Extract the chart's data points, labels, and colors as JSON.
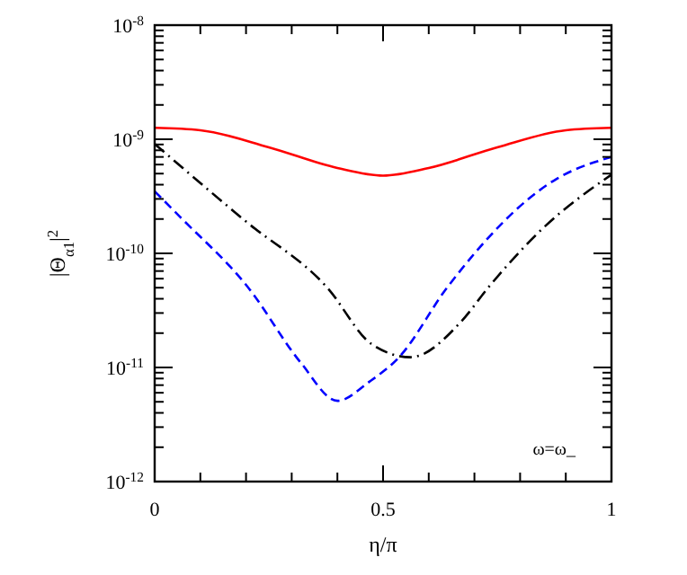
{
  "chart_data": {
    "type": "line",
    "xlabel": "η/π",
    "ylabel": "|Θ$_{α1}$|$^{2}$",
    "log": "y",
    "xlim": [
      0,
      1
    ],
    "ylim": [
      1e-12,
      1e-08
    ],
    "xticks": [
      0,
      {
        "value": 0.1,
        "label": null
      },
      {
        "value": 0.2,
        "label": null
      },
      {
        "value": 0.3,
        "label": null
      },
      {
        "value": 0.4,
        "label": null
      },
      0.5,
      {
        "value": 0.6,
        "label": null
      },
      {
        "value": 0.7,
        "label": null
      },
      {
        "value": 0.8,
        "label": null
      },
      {
        "value": 0.9,
        "label": null
      },
      1
    ],
    "yticks": [
      {
        "value": 1e-12,
        "label": "10$^{-12}$"
      },
      {
        "value": 1e-11,
        "label": "10$^{-11}$"
      },
      {
        "value": 1e-10,
        "label": "10$^{-10}$"
      },
      {
        "value": 1e-09,
        "label": "10$^{-9}$"
      },
      {
        "value": 1e-08,
        "label": "10$^{-8}$"
      }
    ],
    "annotations": [
      "ω=ω_"
    ],
    "series": [
      {
        "color": "#ff0000",
        "line_style": "solid",
        "x": [
          0,
          0.1,
          0.25,
          0.4,
          0.5,
          0.6,
          0.75,
          0.9,
          1
        ],
        "values": [
          1.26e-09,
          1.2e-09,
          8.5e-10,
          5.6e-10,
          4.8e-10,
          5.6e-10,
          8.5e-10,
          1.2e-09,
          1.26e-09
        ]
      },
      {
        "color": "#000000",
        "line_style": "dashdot",
        "x": [
          0,
          0.2,
          0.378,
          0.475,
          0.56,
          0.67,
          0.73,
          0.85,
          1
        ],
        "values": [
          9.1e-10,
          1.9e-10,
          5e-11,
          1.6e-11,
          1.23e-11,
          2.5e-11,
          5e-11,
          1.66e-10,
          4.9e-10
        ]
      },
      {
        "color": "#0000ff",
        "line_style": "dashed",
        "x": [
          0,
          0.055,
          0.205,
          0.32,
          0.4,
          0.47,
          0.535,
          0.64,
          0.88,
          1
        ],
        "values": [
          3.5e-10,
          2.1e-10,
          5e-11,
          1.1e-11,
          5.1e-12,
          7.5e-12,
          1.23e-11,
          5e-11,
          4.5e-10,
          7e-10
        ]
      }
    ]
  }
}
